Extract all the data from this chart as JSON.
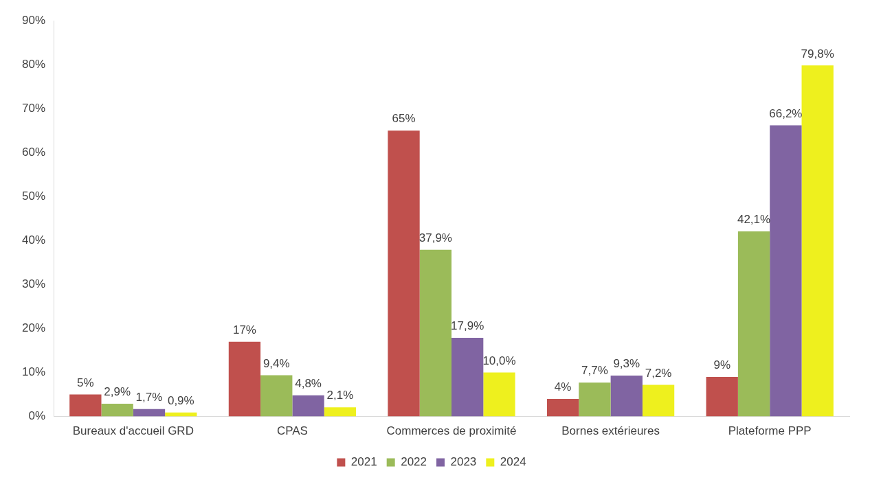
{
  "chart_data": {
    "type": "bar",
    "categories": [
      "Bureaux d'accueil GRD",
      "CPAS",
      "Commerces de proximité",
      "Bornes extérieures",
      "Plateforme PPP"
    ],
    "series": [
      {
        "name": "2021",
        "color": "#c0504d",
        "values": [
          5,
          17,
          65,
          4,
          9
        ],
        "value_labels": [
          "5%",
          "17%",
          "65%",
          "4%",
          "9%"
        ]
      },
      {
        "name": "2022",
        "color": "#9bbb59",
        "values": [
          2.9,
          9.4,
          37.9,
          7.7,
          42.1
        ],
        "value_labels": [
          "2,9%",
          "9,4%",
          "37,9%",
          "7,7%",
          "42,1%"
        ]
      },
      {
        "name": "2023",
        "color": "#8064a2",
        "values": [
          1.7,
          4.8,
          17.9,
          9.3,
          66.2
        ],
        "value_labels": [
          "1,7%",
          "4,8%",
          "17,9%",
          "9,3%",
          "66,2%"
        ]
      },
      {
        "name": "2024",
        "color": "#eef01e",
        "values": [
          0.9,
          2.1,
          10.0,
          7.2,
          79.8
        ],
        "value_labels": [
          "0,9%",
          "2,1%",
          "10,0%",
          "7,2%",
          "79,8%"
        ]
      }
    ],
    "ylim": [
      0,
      90
    ],
    "yticks": [
      {
        "value": 0,
        "label": "0%"
      },
      {
        "value": 10,
        "label": "10%"
      },
      {
        "value": 20,
        "label": "20%"
      },
      {
        "value": 30,
        "label": "30%"
      },
      {
        "value": 40,
        "label": "40%"
      },
      {
        "value": 50,
        "label": "50%"
      },
      {
        "value": 60,
        "label": "60%"
      },
      {
        "value": 70,
        "label": "70%"
      },
      {
        "value": 80,
        "label": "80%"
      },
      {
        "value": 90,
        "label": "90%"
      }
    ],
    "grid": false,
    "legend": "bottom"
  }
}
